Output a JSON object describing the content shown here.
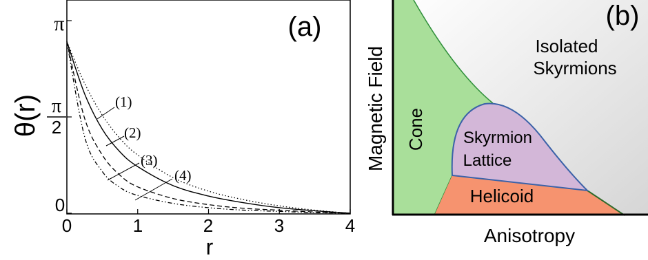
{
  "panel_a": {
    "label": "(a)",
    "xlabel": "r",
    "ylabel": "θ(r)",
    "x_ticks": [
      "0",
      "1",
      "2",
      "3",
      "4"
    ],
    "y_tick_pi": "π",
    "y_tick_half_num": "π",
    "y_tick_half_den": "2",
    "y_tick_zero": "0",
    "curve_labels": [
      "(1)",
      "(2)",
      "(3)",
      "(4)"
    ]
  },
  "panel_b": {
    "label": "(b)",
    "xlabel": "Anisotropy",
    "ylabel": "Magnetic Field",
    "regions": {
      "cone": "Cone",
      "isolated_line1": "Isolated",
      "isolated_line2": "Skyrmions",
      "lattice_line1": "Skyrmion",
      "lattice_line2": "Lattice",
      "helicoid": "Helicoid"
    },
    "colors": {
      "cone": "#a9df9a",
      "lattice": "#d3b7d8",
      "helicoid": "#f6936f",
      "boundary_green": "#2f8f3a",
      "boundary_blue": "#3b62a8"
    }
  },
  "chart_data": [
    {
      "type": "line",
      "title": "(a)",
      "xlabel": "r",
      "ylabel": "θ(r)",
      "xlim": [
        0,
        4
      ],
      "ylim": [
        0,
        3.1416
      ],
      "series": [
        {
          "name": "(1)",
          "style": "dotted",
          "x": [
            0,
            0.25,
            0.5,
            0.75,
            1,
            1.5,
            2,
            2.5,
            3,
            3.5,
            4
          ],
          "y": [
            2.8,
            2.12,
            1.6,
            1.22,
            0.95,
            0.58,
            0.36,
            0.22,
            0.12,
            0.05,
            0
          ]
        },
        {
          "name": "(2)",
          "style": "solid",
          "x": [
            0,
            0.25,
            0.5,
            0.75,
            1,
            1.5,
            2,
            2.5,
            3,
            3.5,
            4
          ],
          "y": [
            2.8,
            1.95,
            1.37,
            1.0,
            0.76,
            0.45,
            0.28,
            0.17,
            0.09,
            0.04,
            0
          ]
        },
        {
          "name": "(3)",
          "style": "dashed",
          "x": [
            0,
            0.25,
            0.5,
            0.75,
            1,
            1.5,
            2,
            2.5,
            3,
            3.5,
            4
          ],
          "y": [
            2.8,
            1.55,
            0.95,
            0.62,
            0.43,
            0.24,
            0.14,
            0.08,
            0.05,
            0.02,
            0
          ]
        },
        {
          "name": "(4)",
          "style": "dash-dot-dot",
          "x": [
            0,
            0.25,
            0.5,
            0.75,
            1,
            1.5,
            2,
            2.5,
            3,
            3.5,
            4
          ],
          "y": [
            2.8,
            1.25,
            0.68,
            0.42,
            0.29,
            0.16,
            0.09,
            0.05,
            0.03,
            0.01,
            0
          ]
        }
      ]
    },
    {
      "type": "area",
      "title": "(b)",
      "xlabel": "Anisotropy",
      "ylabel": "Magnetic Field",
      "regions": [
        "Cone",
        "Isolated Skyrmions",
        "Skyrmion Lattice",
        "Helicoid"
      ]
    }
  ]
}
